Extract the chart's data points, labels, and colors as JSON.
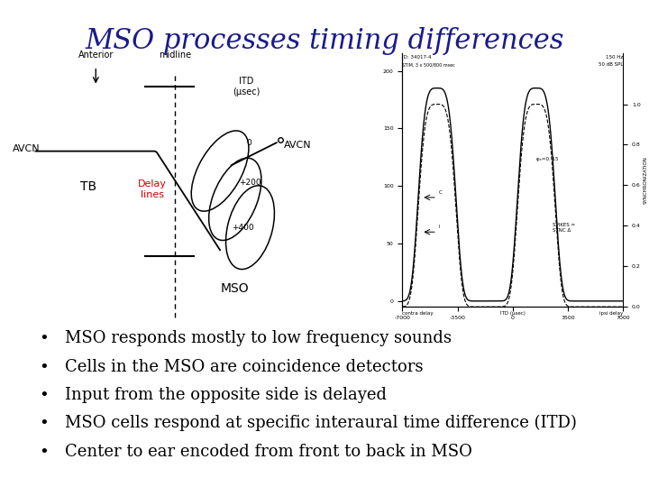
{
  "title": "MSO processes timing differences",
  "title_color": "#1a1a8c",
  "title_fontsize": 22,
  "bullet_points": [
    "MSO responds mostly to low frequency sounds",
    "Cells in the MSO are coincidence detectors",
    "Input from the opposite side is delayed",
    "MSO cells respond at specific interaural time difference (ITD)",
    "Center to ear encoded from front to back in MSO"
  ],
  "bullet_fontsize": 13,
  "bullet_color": "#000000",
  "delay_lines_color": "#cc0000",
  "background_color": "#ffffff"
}
